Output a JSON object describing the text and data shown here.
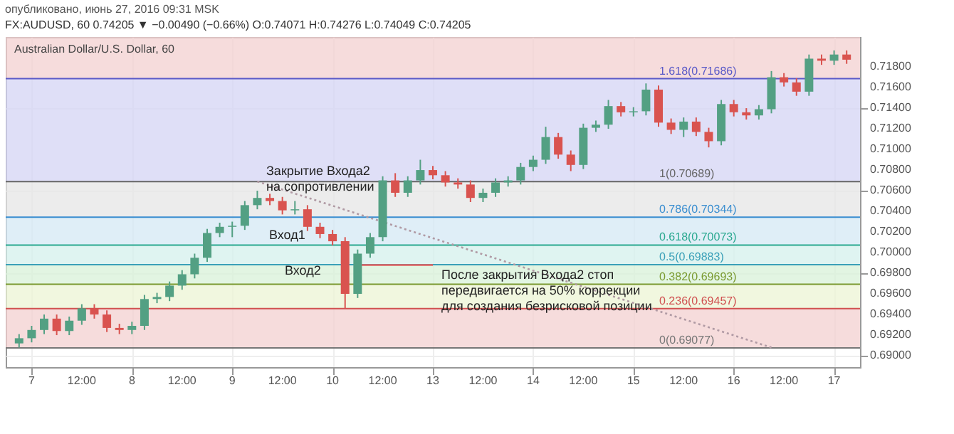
{
  "chart_data": {
    "type": "candlestick",
    "title": "опубликовано, июнь 27, 2016 09:31 MSK",
    "subtitle": "FX:AUDUSD, 60  0.74205 ▼ −0.00490 (−0.66%) O:0.74071 H:0.74276 L:0.74049 C:0.74205",
    "categories": [
      null,
      "7",
      null,
      null,
      null,
      "12:00",
      null,
      null,
      null,
      "8",
      null,
      null,
      null,
      "12:00",
      null,
      null,
      null,
      "9",
      null,
      null,
      null,
      "12:00",
      null,
      null,
      null,
      "10",
      null,
      null,
      null,
      "12:00",
      null,
      null,
      null,
      "13",
      null,
      null,
      null,
      "12:00",
      null,
      null,
      null,
      "14",
      null,
      null,
      null,
      "12:00",
      null,
      null,
      null,
      "15",
      null,
      null,
      null,
      "12:00",
      null,
      null,
      null,
      "16",
      null,
      null,
      null,
      "12:00",
      null,
      null,
      null,
      "17",
      null
    ],
    "ohlc": [
      [
        0.6912,
        0.6921,
        0.6908,
        0.6917
      ],
      [
        0.6917,
        0.6929,
        0.6913,
        0.6925
      ],
      [
        0.6925,
        0.694,
        0.6921,
        0.6936
      ],
      [
        0.6936,
        0.694,
        0.692,
        0.6924
      ],
      [
        0.6924,
        0.6938,
        0.692,
        0.6934
      ],
      [
        0.6934,
        0.695,
        0.693,
        0.6946
      ],
      [
        0.6946,
        0.695,
        0.6936,
        0.694
      ],
      [
        0.694,
        0.6944,
        0.6923,
        0.6927
      ],
      [
        0.6927,
        0.6931,
        0.6921,
        0.6925
      ],
      [
        0.6925,
        0.6933,
        0.6921,
        0.6929
      ],
      [
        0.6929,
        0.6959,
        0.6925,
        0.6955
      ],
      [
        0.6955,
        0.6961,
        0.6951,
        0.6957
      ],
      [
        0.6957,
        0.6972,
        0.6953,
        0.6968
      ],
      [
        0.6968,
        0.6983,
        0.6964,
        0.6979
      ],
      [
        0.6979,
        0.6999,
        0.6975,
        0.6995
      ],
      [
        0.6995,
        0.7023,
        0.6991,
        0.7019
      ],
      [
        0.7019,
        0.7029,
        0.7015,
        0.7025
      ],
      [
        0.7025,
        0.703,
        0.7015,
        0.7026
      ],
      [
        0.7026,
        0.705,
        0.7022,
        0.7046
      ],
      [
        0.7046,
        0.706,
        0.7042,
        0.7053
      ],
      [
        0.7053,
        0.7057,
        0.7046,
        0.705
      ],
      [
        0.705,
        0.7054,
        0.7037,
        0.7041
      ],
      [
        0.7041,
        0.705,
        0.7037,
        0.7042
      ],
      [
        0.7042,
        0.7046,
        0.7021,
        0.7025
      ],
      [
        0.7025,
        0.7029,
        0.7014,
        0.7018
      ],
      [
        0.7018,
        0.7022,
        0.7007,
        0.7011
      ],
      [
        0.7011,
        0.7015,
        0.6946,
        0.696
      ],
      [
        0.696,
        0.7003,
        0.6956,
        0.6999
      ],
      [
        0.6999,
        0.7019,
        0.6995,
        0.7015
      ],
      [
        0.7015,
        0.7074,
        0.7011,
        0.707
      ],
      [
        0.707,
        0.7077,
        0.7054,
        0.7058
      ],
      [
        0.7058,
        0.7074,
        0.7054,
        0.707
      ],
      [
        0.707,
        0.709,
        0.7066,
        0.708
      ],
      [
        0.708,
        0.7084,
        0.7071,
        0.7075
      ],
      [
        0.7075,
        0.7079,
        0.7064,
        0.7068
      ],
      [
        0.7068,
        0.7072,
        0.7062,
        0.7066
      ],
      [
        0.7066,
        0.707,
        0.7049,
        0.7053
      ],
      [
        0.7053,
        0.7062,
        0.7049,
        0.7058
      ],
      [
        0.7058,
        0.7072,
        0.7054,
        0.7068
      ],
      [
        0.7068,
        0.7074,
        0.7064,
        0.707
      ],
      [
        0.707,
        0.7087,
        0.7066,
        0.7083
      ],
      [
        0.7083,
        0.7094,
        0.7079,
        0.709
      ],
      [
        0.709,
        0.7122,
        0.7086,
        0.7112
      ],
      [
        0.7112,
        0.7116,
        0.7091,
        0.7095
      ],
      [
        0.7095,
        0.7099,
        0.7079,
        0.7085
      ],
      [
        0.7085,
        0.7125,
        0.7081,
        0.7121
      ],
      [
        0.7121,
        0.7128,
        0.7117,
        0.7124
      ],
      [
        0.7124,
        0.7148,
        0.712,
        0.7142
      ],
      [
        0.7142,
        0.7146,
        0.7132,
        0.7136
      ],
      [
        0.7136,
        0.7141,
        0.7132,
        0.7137
      ],
      [
        0.7137,
        0.7164,
        0.7133,
        0.7158
      ],
      [
        0.7158,
        0.7162,
        0.7122,
        0.7126
      ],
      [
        0.7126,
        0.713,
        0.7115,
        0.7119
      ],
      [
        0.7119,
        0.7131,
        0.7112,
        0.7127
      ],
      [
        0.7127,
        0.7131,
        0.7113,
        0.7117
      ],
      [
        0.7117,
        0.7121,
        0.7102,
        0.7108
      ],
      [
        0.7108,
        0.7148,
        0.7104,
        0.7144
      ],
      [
        0.7144,
        0.7148,
        0.7132,
        0.7136
      ],
      [
        0.7136,
        0.714,
        0.7129,
        0.7133
      ],
      [
        0.7133,
        0.7143,
        0.7129,
        0.7139
      ],
      [
        0.7139,
        0.7176,
        0.7135,
        0.717
      ],
      [
        0.717,
        0.7174,
        0.7161,
        0.7165
      ],
      [
        0.7165,
        0.7169,
        0.7152,
        0.7156
      ],
      [
        0.7156,
        0.7192,
        0.7152,
        0.7188
      ],
      [
        0.7188,
        0.7192,
        0.7182,
        0.7186
      ],
      [
        0.7186,
        0.7196,
        0.7182,
        0.7192
      ],
      [
        0.7192,
        0.7196,
        0.7183,
        0.7187
      ]
    ],
    "series": [
      {
        "type": "line",
        "values": [
          null,
          null,
          null,
          null,
          null,
          null,
          null,
          null,
          null,
          null,
          null,
          null,
          null,
          null,
          null,
          null,
          null,
          null,
          null,
          0.7069,
          null,
          null,
          null,
          null,
          null,
          null,
          null,
          null,
          null,
          null,
          null,
          null,
          null,
          null,
          null,
          null,
          null,
          null,
          null,
          null,
          null,
          null,
          null,
          null,
          null,
          null,
          null,
          null,
          null,
          null,
          null,
          null,
          null,
          null,
          null,
          null,
          null,
          null,
          null,
          null,
          0.6908,
          null,
          null,
          null,
          null,
          null,
          null
        ],
        "color": "#b09aa4",
        "line_style": "dotted"
      },
      {
        "type": "line",
        "values": [
          null,
          null,
          null,
          null,
          null,
          null,
          null,
          null,
          null,
          null,
          null,
          null,
          null,
          null,
          null,
          null,
          null,
          null,
          null,
          null,
          null,
          null,
          null,
          null,
          null,
          null,
          null,
          0.6988,
          null,
          null,
          null,
          null,
          null,
          0.6988,
          null,
          null,
          null,
          null,
          null,
          null,
          null,
          null,
          null,
          null,
          null,
          null,
          null,
          null,
          null,
          null,
          null,
          null,
          null,
          null,
          null,
          null,
          null,
          null,
          null,
          null,
          null,
          null,
          null,
          null,
          null,
          null,
          null
        ],
        "color": "#e06060",
        "line_style": "solid"
      }
    ],
    "bands": [
      {
        "axis": "y",
        "from": 0.71686,
        "to": 0.7209,
        "color": "#f3d0d0"
      },
      {
        "axis": "y",
        "from": 0.70689,
        "to": 0.71686,
        "color": "#d4d4f4"
      },
      {
        "axis": "y",
        "from": 0.70344,
        "to": 0.70689,
        "color": "#e6e6e6"
      },
      {
        "axis": "y",
        "from": 0.70073,
        "to": 0.70344,
        "color": "#d4e8f4"
      },
      {
        "axis": "y",
        "from": 0.69883,
        "to": 0.70073,
        "color": "#d4f0ec"
      },
      {
        "axis": "y",
        "from": 0.69693,
        "to": 0.69883,
        "color": "#d8f2d8"
      },
      {
        "axis": "y",
        "from": 0.69457,
        "to": 0.69693,
        "color": "#ecf4d4"
      },
      {
        "axis": "y",
        "from": 0.69077,
        "to": 0.69457,
        "color": "#f3d0d0"
      }
    ],
    "ref_lines": [
      {
        "axis": "y",
        "value": 0.71686,
        "label": "1.618(0.71686)",
        "color": "#5a5ac8"
      },
      {
        "axis": "y",
        "value": 0.70689,
        "label": "1(0.70689)",
        "color": "#666666"
      },
      {
        "axis": "y",
        "value": 0.70344,
        "label": "0.786(0.70344)",
        "color": "#3a8ed0"
      },
      {
        "axis": "y",
        "value": 0.70073,
        "label": "0.618(0.70073)",
        "color": "#2aa890"
      },
      {
        "axis": "y",
        "value": 0.69883,
        "label": "0.5(0.69883)",
        "color": "#3aa0b8"
      },
      {
        "axis": "y",
        "value": 0.69693,
        "label": "0.382(0.69693)",
        "color": "#7a9a30"
      },
      {
        "axis": "y",
        "value": 0.69457,
        "label": "0.236(0.69457)",
        "color": "#d05050"
      },
      {
        "axis": "y",
        "value": 0.69077,
        "label": "0(0.69077)",
        "color": "#777777"
      }
    ],
    "annotations": [
      "Australian Dollar/U.S. Dollar, 60",
      "Закрытие Входа2\nна сопротивлении",
      "Вход1",
      "Вход2",
      {
        "text": "После закрытия Входа2 стоп\nпередвигается на 50% коррекции\nдля создания безрисковой позиции",
        "x": "13",
        "y": 0.6988
      }
    ],
    "ylim": [
      0.6889,
      0.7209
    ],
    "yticks": [
      {
        "value": 0.69,
        "label": "0.69000"
      },
      {
        "value": 0.692,
        "label": "0.69200"
      },
      {
        "value": 0.694,
        "label": "0.69400"
      },
      {
        "value": 0.696,
        "label": "0.69600"
      },
      {
        "value": 0.698,
        "label": "0.69800"
      },
      {
        "value": 0.7,
        "label": "0.70000"
      },
      {
        "value": 0.702,
        "label": "0.70200"
      },
      {
        "value": 0.704,
        "label": "0.70400"
      },
      {
        "value": 0.706,
        "label": "0.70600"
      },
      {
        "value": 0.708,
        "label": "0.70800"
      },
      {
        "value": 0.71,
        "label": "0.71000"
      },
      {
        "value": 0.712,
        "label": "0.71200"
      },
      {
        "value": 0.714,
        "label": "0.71400"
      },
      {
        "value": 0.716,
        "label": "0.71600"
      },
      {
        "value": 0.718,
        "label": "0.71800"
      }
    ],
    "grid": true
  }
}
